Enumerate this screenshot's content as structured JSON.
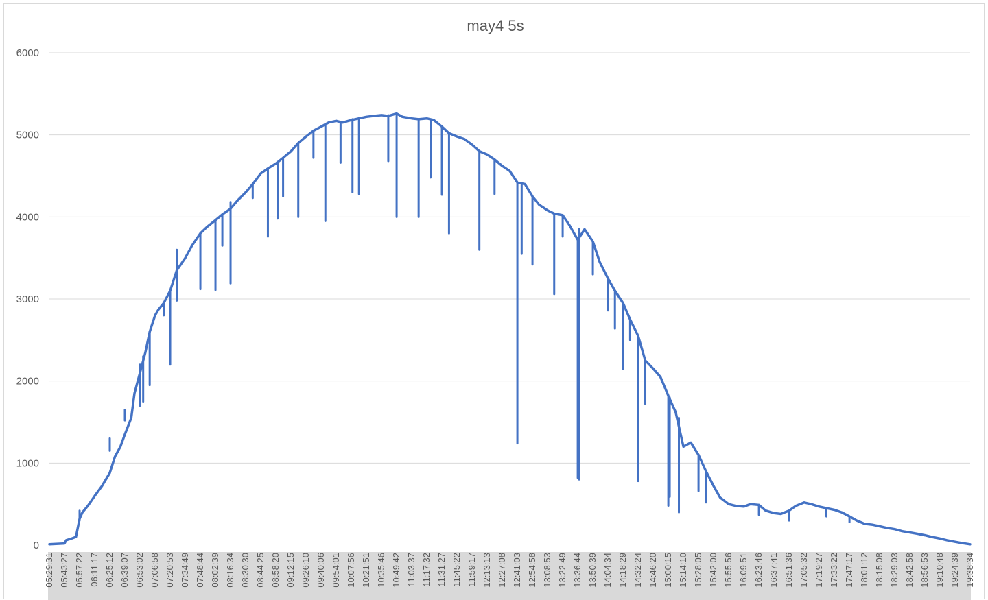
{
  "chart_data": {
    "type": "line",
    "title": "may4 5s",
    "xlabel": "",
    "ylabel": "",
    "ylim": [
      0,
      6000
    ],
    "yticks": [
      0,
      1000,
      2000,
      3000,
      4000,
      5000,
      6000
    ],
    "grid": true,
    "legend": "none",
    "colors": {
      "line": "#4472c4",
      "grid": "#d9d9d9",
      "xaxis_band": "#d9d9d9",
      "text": "#595959"
    },
    "x_tick_labels": [
      "05:29:31",
      "05:43:27",
      "05:57:22",
      "06:11:17",
      "06:25:12",
      "06:39:07",
      "06:53:02",
      "07:06:58",
      "07:20:53",
      "07:34:49",
      "07:48:44",
      "08:02:39",
      "08:16:34",
      "08:30:30",
      "08:44:25",
      "08:58:20",
      "09:12:15",
      "09:26:10",
      "09:40:06",
      "09:54:01",
      "10:07:56",
      "10:21:51",
      "10:35:46",
      "10:49:42",
      "11:03:37",
      "11:17:32",
      "11:31:27",
      "11:45:22",
      "11:59:17",
      "12:13:13",
      "12:27:08",
      "12:41:03",
      "12:54:58",
      "13:08:53",
      "13:22:49",
      "13:36:44",
      "13:50:39",
      "14:04:34",
      "14:18:29",
      "14:32:24",
      "14:46:20",
      "15:00:15",
      "15:14:10",
      "15:28:05",
      "15:42:00",
      "15:55:56",
      "16:09:51",
      "16:23:46",
      "16:37:41",
      "16:51:36",
      "17:05:32",
      "17:19:27",
      "17:33:22",
      "17:47:17",
      "18:01:12",
      "18:15:08",
      "18:29:03",
      "18:42:58",
      "18:56:53",
      "19:10:48",
      "19:24:39",
      "19:38:34"
    ],
    "series": [
      {
        "name": "",
        "points": [
          [
            "05:29:31",
            10
          ],
          [
            "05:43:27",
            20
          ],
          [
            "05:45:00",
            60
          ],
          [
            "05:50:00",
            80
          ],
          [
            "05:54:00",
            100
          ],
          [
            "05:57:22",
            320
          ],
          [
            "06:00:00",
            400
          ],
          [
            "06:05:00",
            480
          ],
          [
            "06:11:17",
            600
          ],
          [
            "06:18:00",
            720
          ],
          [
            "06:25:12",
            880
          ],
          [
            "06:30:00",
            1080
          ],
          [
            "06:35:00",
            1200
          ],
          [
            "06:39:07",
            1350
          ],
          [
            "06:45:00",
            1550
          ],
          [
            "06:48:00",
            1850
          ],
          [
            "06:53:02",
            2100
          ],
          [
            "06:58:00",
            2350
          ],
          [
            "07:02:00",
            2600
          ],
          [
            "07:06:58",
            2800
          ],
          [
            "07:10:00",
            2870
          ],
          [
            "07:15:00",
            2950
          ],
          [
            "07:20:53",
            3100
          ],
          [
            "07:27:00",
            3350
          ],
          [
            "07:34:49",
            3500
          ],
          [
            "07:41:00",
            3650
          ],
          [
            "07:48:44",
            3800
          ],
          [
            "07:55:00",
            3880
          ],
          [
            "08:02:39",
            3960
          ],
          [
            "08:09:00",
            4030
          ],
          [
            "08:16:34",
            4100
          ],
          [
            "08:23:00",
            4200
          ],
          [
            "08:30:30",
            4300
          ],
          [
            "08:37:00",
            4400
          ],
          [
            "08:44:25",
            4530
          ],
          [
            "08:51:00",
            4590
          ],
          [
            "08:58:20",
            4650
          ],
          [
            "09:05:00",
            4720
          ],
          [
            "09:12:15",
            4800
          ],
          [
            "09:19:00",
            4900
          ],
          [
            "09:26:10",
            4980
          ],
          [
            "09:33:00",
            5050
          ],
          [
            "09:40:06",
            5100
          ],
          [
            "09:47:00",
            5150
          ],
          [
            "09:54:01",
            5170
          ],
          [
            "10:00:00",
            5150
          ],
          [
            "10:07:56",
            5180
          ],
          [
            "10:15:00",
            5200
          ],
          [
            "10:21:51",
            5220
          ],
          [
            "10:28:00",
            5230
          ],
          [
            "10:35:46",
            5240
          ],
          [
            "10:42:00",
            5230
          ],
          [
            "10:49:42",
            5260
          ],
          [
            "10:55:00",
            5220
          ],
          [
            "11:03:37",
            5200
          ],
          [
            "11:10:00",
            5190
          ],
          [
            "11:17:32",
            5200
          ],
          [
            "11:24:00",
            5180
          ],
          [
            "11:31:27",
            5100
          ],
          [
            "11:38:00",
            5020
          ],
          [
            "11:45:22",
            4980
          ],
          [
            "11:52:00",
            4950
          ],
          [
            "11:59:17",
            4880
          ],
          [
            "12:06:00",
            4800
          ],
          [
            "12:13:13",
            4760
          ],
          [
            "12:20:00",
            4700
          ],
          [
            "12:27:08",
            4620
          ],
          [
            "12:34:00",
            4560
          ],
          [
            "12:41:03",
            4420
          ],
          [
            "12:48:00",
            4400
          ],
          [
            "12:54:58",
            4250
          ],
          [
            "13:01:00",
            4150
          ],
          [
            "13:08:53",
            4080
          ],
          [
            "13:15:00",
            4040
          ],
          [
            "13:22:49",
            4020
          ],
          [
            "13:29:00",
            3900
          ],
          [
            "13:36:44",
            3720
          ],
          [
            "13:43:00",
            3850
          ],
          [
            "13:50:39",
            3700
          ],
          [
            "13:57:00",
            3450
          ],
          [
            "14:04:34",
            3250
          ],
          [
            "14:11:00",
            3100
          ],
          [
            "14:18:29",
            2950
          ],
          [
            "14:25:00",
            2750
          ],
          [
            "14:32:24",
            2550
          ],
          [
            "14:39:00",
            2250
          ],
          [
            "14:46:20",
            2150
          ],
          [
            "14:53:00",
            2050
          ],
          [
            "15:00:15",
            1820
          ],
          [
            "15:07:00",
            1620
          ],
          [
            "15:14:10",
            1200
          ],
          [
            "15:21:00",
            1250
          ],
          [
            "15:28:05",
            1100
          ],
          [
            "15:35:00",
            900
          ],
          [
            "15:42:00",
            720
          ],
          [
            "15:48:00",
            580
          ],
          [
            "15:55:56",
            500
          ],
          [
            "16:02:00",
            480
          ],
          [
            "16:09:51",
            470
          ],
          [
            "16:16:00",
            500
          ],
          [
            "16:23:46",
            490
          ],
          [
            "16:30:00",
            420
          ],
          [
            "16:37:41",
            390
          ],
          [
            "16:44:00",
            380
          ],
          [
            "16:51:36",
            420
          ],
          [
            "16:58:00",
            480
          ],
          [
            "17:05:32",
            520
          ],
          [
            "17:12:00",
            500
          ],
          [
            "17:19:27",
            470
          ],
          [
            "17:26:00",
            450
          ],
          [
            "17:33:22",
            430
          ],
          [
            "17:40:00",
            400
          ],
          [
            "17:47:17",
            350
          ],
          [
            "17:54:00",
            300
          ],
          [
            "18:01:12",
            260
          ],
          [
            "18:08:00",
            250
          ],
          [
            "18:15:08",
            230
          ],
          [
            "18:22:00",
            210
          ],
          [
            "18:29:03",
            195
          ],
          [
            "18:36:00",
            170
          ],
          [
            "18:42:58",
            155
          ],
          [
            "18:49:00",
            140
          ],
          [
            "18:56:53",
            120
          ],
          [
            "19:03:00",
            100
          ],
          [
            "19:10:48",
            80
          ],
          [
            "19:17:00",
            60
          ],
          [
            "19:24:39",
            40
          ],
          [
            "19:31:00",
            25
          ],
          [
            "19:38:34",
            10
          ]
        ],
        "dips": [
          [
            "05:57:22",
            420,
            300
          ],
          [
            "06:25:12",
            1300,
            1150
          ],
          [
            "06:39:07",
            1650,
            1520
          ],
          [
            "06:53:02",
            2200,
            1700
          ],
          [
            "06:56:00",
            2300,
            1750
          ],
          [
            "07:02:00",
            2600,
            1950
          ],
          [
            "07:15:00",
            2950,
            2800
          ],
          [
            "07:20:53",
            3100,
            2200
          ],
          [
            "07:27:00",
            3600,
            2980
          ],
          [
            "07:48:44",
            3800,
            3120
          ],
          [
            "08:02:39",
            3960,
            3110
          ],
          [
            "08:09:00",
            4030,
            3650
          ],
          [
            "08:16:34",
            4180,
            3190
          ],
          [
            "08:37:00",
            4400,
            4230
          ],
          [
            "08:51:00",
            4590,
            3760
          ],
          [
            "09:00:00",
            4650,
            3980
          ],
          [
            "09:05:00",
            4720,
            4250
          ],
          [
            "09:19:00",
            4900,
            4000
          ],
          [
            "09:33:00",
            5050,
            4720
          ],
          [
            "09:44:00",
            5120,
            3950
          ],
          [
            "09:58:00",
            5160,
            4660
          ],
          [
            "10:09:00",
            5190,
            4300
          ],
          [
            "10:15:00",
            5210,
            4280
          ],
          [
            "10:42:00",
            5240,
            4680
          ],
          [
            "10:49:42",
            5260,
            4000
          ],
          [
            "11:10:00",
            5190,
            4000
          ],
          [
            "11:21:00",
            5190,
            4480
          ],
          [
            "11:31:27",
            5100,
            4270
          ],
          [
            "11:38:00",
            5020,
            3800
          ],
          [
            "12:06:00",
            4800,
            3600
          ],
          [
            "12:20:00",
            4700,
            4280
          ],
          [
            "12:41:03",
            4420,
            1240
          ],
          [
            "12:45:00",
            4410,
            3550
          ],
          [
            "12:54:58",
            4250,
            3420
          ],
          [
            "13:15:00",
            4040,
            3060
          ],
          [
            "13:22:49",
            4020,
            3760
          ],
          [
            "13:36:44",
            3720,
            820
          ],
          [
            "13:38:00",
            3850,
            800
          ],
          [
            "13:50:39",
            3700,
            3300
          ],
          [
            "14:04:34",
            3250,
            2860
          ],
          [
            "14:11:00",
            3100,
            2640
          ],
          [
            "14:18:29",
            2950,
            2150
          ],
          [
            "14:25:00",
            2750,
            2500
          ],
          [
            "14:32:24",
            2550,
            780
          ],
          [
            "14:39:00",
            2250,
            1720
          ],
          [
            "15:00:15",
            1820,
            480
          ],
          [
            "15:01:30",
            1800,
            590
          ],
          [
            "15:10:00",
            1550,
            400
          ],
          [
            "15:28:05",
            1100,
            660
          ],
          [
            "15:35:00",
            900,
            520
          ],
          [
            "16:23:46",
            490,
            370
          ],
          [
            "16:51:36",
            420,
            300
          ],
          [
            "17:26:00",
            450,
            350
          ],
          [
            "17:47:17",
            350,
            280
          ]
        ]
      }
    ]
  }
}
